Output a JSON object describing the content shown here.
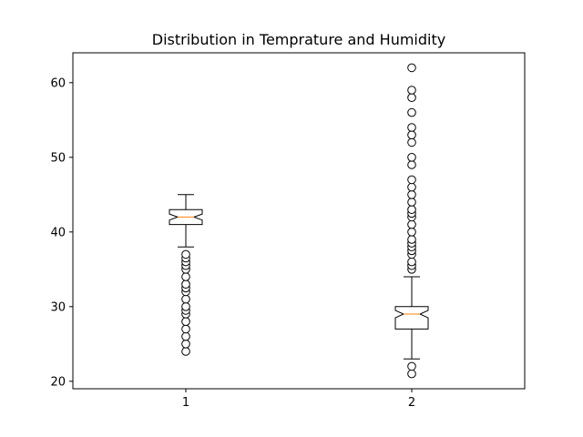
{
  "chart_data": {
    "type": "boxplot",
    "title": "Distribution in Temprature and Humidity",
    "xlabel": "",
    "ylabel": "",
    "ylim": [
      19.0,
      64.0
    ],
    "y_ticks": [
      20,
      30,
      40,
      50,
      60
    ],
    "categories": [
      "1",
      "2"
    ],
    "notched": true,
    "grid": false,
    "colors": {
      "box": "#000000",
      "median": "#ff7f0e",
      "flier_face": "#ffffff"
    },
    "boxes": [
      {
        "label": "1",
        "whisker_low": 38,
        "q1": 41,
        "median": 42,
        "q3": 43,
        "whisker_high": 45,
        "notch_low": 41.6,
        "notch_high": 42.4,
        "fliers": [
          24,
          25,
          26,
          27,
          28,
          29,
          29.5,
          30,
          31,
          32,
          32.5,
          33,
          34,
          35,
          35.5,
          36,
          36.5,
          37
        ]
      },
      {
        "label": "2",
        "whisker_low": 23,
        "q1": 27,
        "median": 29,
        "q3": 30,
        "whisker_high": 34,
        "notch_low": 28.5,
        "notch_high": 29.5,
        "fliers": [
          21,
          22,
          35,
          35.5,
          36,
          37,
          37.5,
          38,
          38.5,
          39,
          40,
          41,
          42,
          42.5,
          43,
          44,
          45,
          46,
          47,
          49,
          50,
          52,
          53,
          54,
          56,
          58,
          59,
          62
        ]
      }
    ]
  }
}
